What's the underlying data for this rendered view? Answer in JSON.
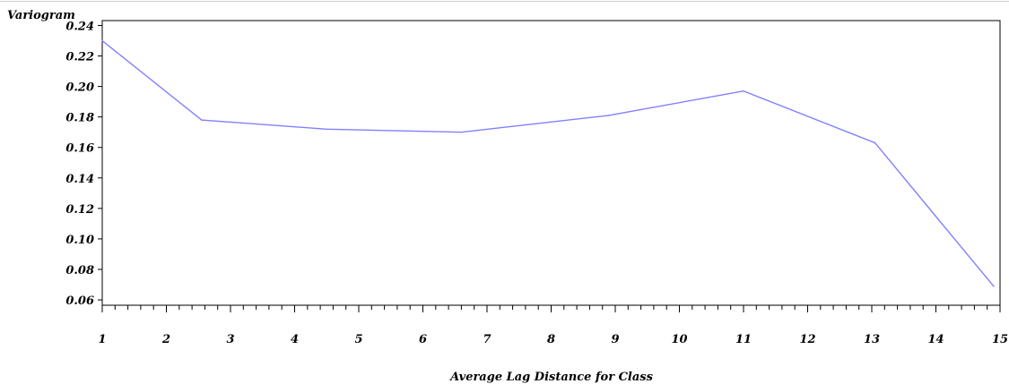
{
  "chart_data": {
    "type": "line",
    "title": "",
    "xlabel": "Average Lag Distance for Class",
    "ylabel": "Variogram",
    "xlim": [
      1,
      15
    ],
    "ylim": [
      0.06,
      0.24
    ],
    "x_ticks": [
      "1",
      "2",
      "3",
      "4",
      "5",
      "6",
      "7",
      "8",
      "9",
      "10",
      "11",
      "12",
      "13",
      "14",
      "15"
    ],
    "y_ticks": [
      "0.06",
      "0.08",
      "0.10",
      "0.12",
      "0.14",
      "0.16",
      "0.18",
      "0.20",
      "0.22",
      "0.24"
    ],
    "grid": false,
    "series": [
      {
        "x": [
          1.0,
          2.55,
          4.5,
          6.6,
          8.9,
          11.0,
          13.05,
          14.9
        ],
        "y": [
          0.23,
          0.178,
          0.172,
          0.17,
          0.181,
          0.197,
          0.163,
          0.069
        ],
        "color": "#8080ff"
      }
    ]
  }
}
